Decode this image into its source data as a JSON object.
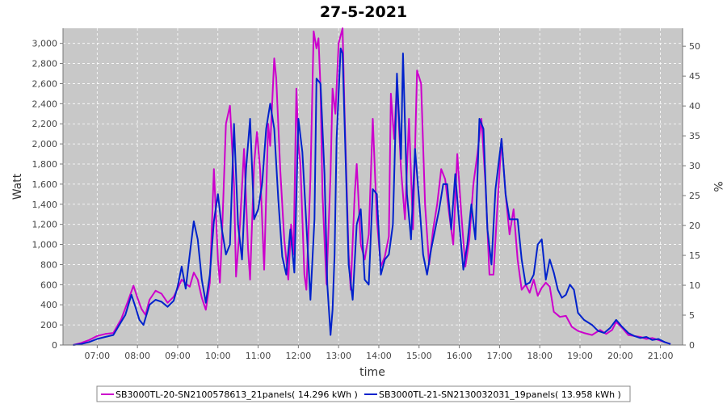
{
  "chart_data": {
    "type": "line",
    "title": "27-5-2021",
    "xlabel": "time",
    "ylabel": "Watt",
    "y2label": "%",
    "xlim": [
      6.15,
      21.55
    ],
    "ylim": [
      0,
      3150
    ],
    "y2lim": [
      0,
      53
    ],
    "xticks": [
      7,
      8,
      9,
      10,
      11,
      12,
      13,
      14,
      15,
      16,
      17,
      18,
      19,
      20,
      21
    ],
    "xtick_labels": [
      "07:00",
      "08:00",
      "09:00",
      "10:00",
      "11:00",
      "12:00",
      "13:00",
      "14:00",
      "15:00",
      "16:00",
      "17:00",
      "18:00",
      "19:00",
      "20:00",
      "21:00"
    ],
    "yticks": [
      0,
      200,
      400,
      600,
      800,
      1000,
      1200,
      1400,
      1600,
      1800,
      2000,
      2200,
      2400,
      2600,
      2800,
      3000
    ],
    "ytick_labels": [
      "0",
      "200",
      "400",
      "600",
      "800",
      "1,000",
      "1,200",
      "1,400",
      "1,600",
      "1,800",
      "2,000",
      "2,200",
      "2,400",
      "2,600",
      "2,800",
      "3,000"
    ],
    "y2ticks": [
      0,
      5,
      10,
      15,
      20,
      25,
      30,
      35,
      40,
      45,
      50
    ],
    "y2tick_labels": [
      "0",
      "5",
      "10",
      "15",
      "20",
      "25",
      "30",
      "35",
      "40",
      "45",
      "50"
    ],
    "grid": true,
    "legend_position": "bottom",
    "background": "#c8c8c8",
    "series": [
      {
        "name": "SB3000TL-20-SN2100578613_21panels( 14.296 kWh )",
        "color": "#cc00cc",
        "points": [
          [
            6.4,
            0
          ],
          [
            6.6,
            20
          ],
          [
            6.8,
            50
          ],
          [
            7.0,
            90
          ],
          [
            7.2,
            110
          ],
          [
            7.4,
            120
          ],
          [
            7.6,
            260
          ],
          [
            7.75,
            420
          ],
          [
            7.9,
            590
          ],
          [
            8.0,
            470
          ],
          [
            8.1,
            360
          ],
          [
            8.2,
            300
          ],
          [
            8.3,
            450
          ],
          [
            8.45,
            540
          ],
          [
            8.6,
            510
          ],
          [
            8.75,
            420
          ],
          [
            8.9,
            480
          ],
          [
            9.0,
            560
          ],
          [
            9.1,
            650
          ],
          [
            9.2,
            610
          ],
          [
            9.3,
            580
          ],
          [
            9.4,
            720
          ],
          [
            9.5,
            650
          ],
          [
            9.6,
            470
          ],
          [
            9.7,
            350
          ],
          [
            9.8,
            620
          ],
          [
            9.9,
            1750
          ],
          [
            10.0,
            850
          ],
          [
            10.05,
            620
          ],
          [
            10.1,
            1060
          ],
          [
            10.2,
            2200
          ],
          [
            10.3,
            2380
          ],
          [
            10.4,
            1600
          ],
          [
            10.45,
            680
          ],
          [
            10.55,
            1200
          ],
          [
            10.65,
            1950
          ],
          [
            10.75,
            950
          ],
          [
            10.8,
            650
          ],
          [
            10.9,
            1800
          ],
          [
            10.97,
            2120
          ],
          [
            11.05,
            1750
          ],
          [
            11.15,
            750
          ],
          [
            11.25,
            2200
          ],
          [
            11.3,
            1980
          ],
          [
            11.4,
            2850
          ],
          [
            11.45,
            2650
          ],
          [
            11.55,
            1750
          ],
          [
            11.65,
            1050
          ],
          [
            11.75,
            650
          ],
          [
            11.82,
            1200
          ],
          [
            11.88,
            900
          ],
          [
            11.95,
            2550
          ],
          [
            12.0,
            2000
          ],
          [
            12.05,
            1800
          ],
          [
            12.15,
            700
          ],
          [
            12.2,
            550
          ],
          [
            12.3,
            1650
          ],
          [
            12.38,
            3120
          ],
          [
            12.45,
            2950
          ],
          [
            12.5,
            3050
          ],
          [
            12.55,
            2550
          ],
          [
            12.6,
            1500
          ],
          [
            12.7,
            600
          ],
          [
            12.8,
            1700
          ],
          [
            12.85,
            2550
          ],
          [
            12.92,
            2300
          ],
          [
            13.0,
            3000
          ],
          [
            13.1,
            3150
          ],
          [
            13.15,
            2300
          ],
          [
            13.25,
            900
          ],
          [
            13.3,
            550
          ],
          [
            13.4,
            1500
          ],
          [
            13.45,
            1800
          ],
          [
            13.55,
            1000
          ],
          [
            13.65,
            850
          ],
          [
            13.75,
            1100
          ],
          [
            13.85,
            2250
          ],
          [
            13.95,
            1250
          ],
          [
            14.05,
            780
          ],
          [
            14.15,
            880
          ],
          [
            14.25,
            1080
          ],
          [
            14.3,
            2500
          ],
          [
            14.38,
            2050
          ],
          [
            14.45,
            2600
          ],
          [
            14.55,
            1750
          ],
          [
            14.65,
            1250
          ],
          [
            14.75,
            2250
          ],
          [
            14.85,
            1150
          ],
          [
            14.95,
            2730
          ],
          [
            15.05,
            2600
          ],
          [
            15.15,
            1400
          ],
          [
            15.25,
            800
          ],
          [
            15.35,
            1150
          ],
          [
            15.45,
            1400
          ],
          [
            15.55,
            1750
          ],
          [
            15.65,
            1650
          ],
          [
            15.75,
            1300
          ],
          [
            15.85,
            1000
          ],
          [
            15.95,
            1900
          ],
          [
            16.05,
            1300
          ],
          [
            16.15,
            780
          ],
          [
            16.25,
            1050
          ],
          [
            16.35,
            1600
          ],
          [
            16.45,
            1900
          ],
          [
            16.55,
            2250
          ],
          [
            16.65,
            1600
          ],
          [
            16.75,
            700
          ],
          [
            16.85,
            700
          ],
          [
            16.95,
            1400
          ],
          [
            17.05,
            2050
          ],
          [
            17.15,
            1500
          ],
          [
            17.25,
            1100
          ],
          [
            17.35,
            1350
          ],
          [
            17.45,
            850
          ],
          [
            17.55,
            550
          ],
          [
            17.65,
            600
          ],
          [
            17.75,
            520
          ],
          [
            17.85,
            650
          ],
          [
            17.95,
            490
          ],
          [
            18.05,
            570
          ],
          [
            18.15,
            620
          ],
          [
            18.25,
            580
          ],
          [
            18.35,
            330
          ],
          [
            18.5,
            280
          ],
          [
            18.65,
            290
          ],
          [
            18.8,
            180
          ],
          [
            18.95,
            140
          ],
          [
            19.1,
            120
          ],
          [
            19.3,
            100
          ],
          [
            19.5,
            150
          ],
          [
            19.65,
            110
          ],
          [
            19.8,
            150
          ],
          [
            19.9,
            230
          ],
          [
            20.05,
            170
          ],
          [
            20.2,
            100
          ],
          [
            20.35,
            90
          ],
          [
            20.5,
            80
          ],
          [
            20.65,
            60
          ],
          [
            20.8,
            70
          ],
          [
            20.95,
            50
          ],
          [
            21.1,
            30
          ],
          [
            21.25,
            10
          ]
        ]
      },
      {
        "name": "SB3000TL-21-SN2130032031_19panels( 13.958 kWh )",
        "color": "#0022cc",
        "points": [
          [
            6.4,
            0
          ],
          [
            6.6,
            10
          ],
          [
            6.8,
            30
          ],
          [
            7.0,
            60
          ],
          [
            7.2,
            80
          ],
          [
            7.4,
            100
          ],
          [
            7.55,
            200
          ],
          [
            7.7,
            300
          ],
          [
            7.85,
            500
          ],
          [
            7.95,
            380
          ],
          [
            8.05,
            250
          ],
          [
            8.15,
            200
          ],
          [
            8.3,
            400
          ],
          [
            8.45,
            450
          ],
          [
            8.6,
            430
          ],
          [
            8.75,
            380
          ],
          [
            8.9,
            440
          ],
          [
            9.0,
            580
          ],
          [
            9.1,
            780
          ],
          [
            9.2,
            560
          ],
          [
            9.3,
            900
          ],
          [
            9.4,
            1230
          ],
          [
            9.5,
            1050
          ],
          [
            9.6,
            650
          ],
          [
            9.7,
            420
          ],
          [
            9.8,
            700
          ],
          [
            9.9,
            1230
          ],
          [
            10.0,
            1500
          ],
          [
            10.1,
            1150
          ],
          [
            10.2,
            900
          ],
          [
            10.3,
            1000
          ],
          [
            10.4,
            2200
          ],
          [
            10.5,
            1200
          ],
          [
            10.6,
            850
          ],
          [
            10.7,
            1750
          ],
          [
            10.8,
            2250
          ],
          [
            10.9,
            1250
          ],
          [
            11.0,
            1350
          ],
          [
            11.1,
            1600
          ],
          [
            11.2,
            2150
          ],
          [
            11.3,
            2400
          ],
          [
            11.4,
            2150
          ],
          [
            11.5,
            1450
          ],
          [
            11.6,
            880
          ],
          [
            11.7,
            700
          ],
          [
            11.8,
            1150
          ],
          [
            11.9,
            720
          ],
          [
            12.0,
            2250
          ],
          [
            12.1,
            1920
          ],
          [
            12.2,
            1200
          ],
          [
            12.3,
            450
          ],
          [
            12.4,
            1250
          ],
          [
            12.45,
            2650
          ],
          [
            12.55,
            2600
          ],
          [
            12.65,
            1700
          ],
          [
            12.72,
            600
          ],
          [
            12.8,
            100
          ],
          [
            12.85,
            350
          ],
          [
            12.9,
            900
          ],
          [
            12.95,
            2050
          ],
          [
            13.05,
            2950
          ],
          [
            13.1,
            2900
          ],
          [
            13.15,
            2200
          ],
          [
            13.25,
            800
          ],
          [
            13.35,
            450
          ],
          [
            13.45,
            1200
          ],
          [
            13.55,
            1350
          ],
          [
            13.65,
            650
          ],
          [
            13.75,
            600
          ],
          [
            13.85,
            1550
          ],
          [
            13.95,
            1500
          ],
          [
            14.05,
            700
          ],
          [
            14.15,
            850
          ],
          [
            14.25,
            900
          ],
          [
            14.35,
            1200
          ],
          [
            14.45,
            2700
          ],
          [
            14.55,
            1850
          ],
          [
            14.6,
            2900
          ],
          [
            14.7,
            1500
          ],
          [
            14.8,
            1050
          ],
          [
            14.9,
            1950
          ],
          [
            15.0,
            1450
          ],
          [
            15.1,
            900
          ],
          [
            15.2,
            700
          ],
          [
            15.3,
            950
          ],
          [
            15.4,
            1150
          ],
          [
            15.5,
            1350
          ],
          [
            15.6,
            1600
          ],
          [
            15.7,
            1600
          ],
          [
            15.8,
            1150
          ],
          [
            15.9,
            1700
          ],
          [
            16.0,
            1200
          ],
          [
            16.1,
            750
          ],
          [
            16.2,
            1000
          ],
          [
            16.3,
            1400
          ],
          [
            16.4,
            1050
          ],
          [
            16.5,
            2250
          ],
          [
            16.6,
            2150
          ],
          [
            16.7,
            1150
          ],
          [
            16.8,
            800
          ],
          [
            16.9,
            1550
          ],
          [
            17.05,
            2050
          ],
          [
            17.15,
            1500
          ],
          [
            17.25,
            1250
          ],
          [
            17.35,
            1250
          ],
          [
            17.45,
            1250
          ],
          [
            17.55,
            850
          ],
          [
            17.65,
            600
          ],
          [
            17.75,
            620
          ],
          [
            17.85,
            700
          ],
          [
            17.95,
            1000
          ],
          [
            18.05,
            1050
          ],
          [
            18.15,
            650
          ],
          [
            18.25,
            850
          ],
          [
            18.35,
            720
          ],
          [
            18.45,
            550
          ],
          [
            18.55,
            470
          ],
          [
            18.65,
            500
          ],
          [
            18.75,
            600
          ],
          [
            18.85,
            550
          ],
          [
            18.95,
            320
          ],
          [
            19.1,
            250
          ],
          [
            19.3,
            200
          ],
          [
            19.45,
            140
          ],
          [
            19.6,
            120
          ],
          [
            19.75,
            170
          ],
          [
            19.9,
            250
          ],
          [
            20.05,
            180
          ],
          [
            20.2,
            120
          ],
          [
            20.35,
            90
          ],
          [
            20.5,
            70
          ],
          [
            20.65,
            80
          ],
          [
            20.8,
            50
          ],
          [
            20.95,
            60
          ],
          [
            21.1,
            30
          ],
          [
            21.25,
            10
          ]
        ]
      }
    ]
  }
}
